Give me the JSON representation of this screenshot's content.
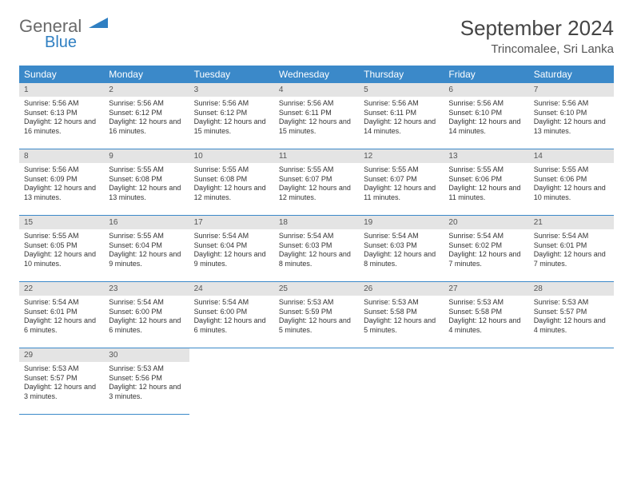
{
  "brand": {
    "part1": "General",
    "part2": "Blue"
  },
  "title": "September 2024",
  "location": "Trincomalee, Sri Lanka",
  "colors": {
    "header_bg": "#3b89c9",
    "header_text": "#ffffff",
    "daynum_bg": "#e4e4e4",
    "border": "#3b89c9",
    "logo_gray": "#6a6a6a",
    "logo_blue": "#2f7fc2"
  },
  "weekdays": [
    "Sunday",
    "Monday",
    "Tuesday",
    "Wednesday",
    "Thursday",
    "Friday",
    "Saturday"
  ],
  "days": [
    {
      "n": 1,
      "r": "5:56 AM",
      "s": "6:13 PM",
      "d": "12 hours and 16 minutes."
    },
    {
      "n": 2,
      "r": "5:56 AM",
      "s": "6:12 PM",
      "d": "12 hours and 16 minutes."
    },
    {
      "n": 3,
      "r": "5:56 AM",
      "s": "6:12 PM",
      "d": "12 hours and 15 minutes."
    },
    {
      "n": 4,
      "r": "5:56 AM",
      "s": "6:11 PM",
      "d": "12 hours and 15 minutes."
    },
    {
      "n": 5,
      "r": "5:56 AM",
      "s": "6:11 PM",
      "d": "12 hours and 14 minutes."
    },
    {
      "n": 6,
      "r": "5:56 AM",
      "s": "6:10 PM",
      "d": "12 hours and 14 minutes."
    },
    {
      "n": 7,
      "r": "5:56 AM",
      "s": "6:10 PM",
      "d": "12 hours and 13 minutes."
    },
    {
      "n": 8,
      "r": "5:56 AM",
      "s": "6:09 PM",
      "d": "12 hours and 13 minutes."
    },
    {
      "n": 9,
      "r": "5:55 AM",
      "s": "6:08 PM",
      "d": "12 hours and 13 minutes."
    },
    {
      "n": 10,
      "r": "5:55 AM",
      "s": "6:08 PM",
      "d": "12 hours and 12 minutes."
    },
    {
      "n": 11,
      "r": "5:55 AM",
      "s": "6:07 PM",
      "d": "12 hours and 12 minutes."
    },
    {
      "n": 12,
      "r": "5:55 AM",
      "s": "6:07 PM",
      "d": "12 hours and 11 minutes."
    },
    {
      "n": 13,
      "r": "5:55 AM",
      "s": "6:06 PM",
      "d": "12 hours and 11 minutes."
    },
    {
      "n": 14,
      "r": "5:55 AM",
      "s": "6:06 PM",
      "d": "12 hours and 10 minutes."
    },
    {
      "n": 15,
      "r": "5:55 AM",
      "s": "6:05 PM",
      "d": "12 hours and 10 minutes."
    },
    {
      "n": 16,
      "r": "5:55 AM",
      "s": "6:04 PM",
      "d": "12 hours and 9 minutes."
    },
    {
      "n": 17,
      "r": "5:54 AM",
      "s": "6:04 PM",
      "d": "12 hours and 9 minutes."
    },
    {
      "n": 18,
      "r": "5:54 AM",
      "s": "6:03 PM",
      "d": "12 hours and 8 minutes."
    },
    {
      "n": 19,
      "r": "5:54 AM",
      "s": "6:03 PM",
      "d": "12 hours and 8 minutes."
    },
    {
      "n": 20,
      "r": "5:54 AM",
      "s": "6:02 PM",
      "d": "12 hours and 7 minutes."
    },
    {
      "n": 21,
      "r": "5:54 AM",
      "s": "6:01 PM",
      "d": "12 hours and 7 minutes."
    },
    {
      "n": 22,
      "r": "5:54 AM",
      "s": "6:01 PM",
      "d": "12 hours and 6 minutes."
    },
    {
      "n": 23,
      "r": "5:54 AM",
      "s": "6:00 PM",
      "d": "12 hours and 6 minutes."
    },
    {
      "n": 24,
      "r": "5:54 AM",
      "s": "6:00 PM",
      "d": "12 hours and 6 minutes."
    },
    {
      "n": 25,
      "r": "5:53 AM",
      "s": "5:59 PM",
      "d": "12 hours and 5 minutes."
    },
    {
      "n": 26,
      "r": "5:53 AM",
      "s": "5:58 PM",
      "d": "12 hours and 5 minutes."
    },
    {
      "n": 27,
      "r": "5:53 AM",
      "s": "5:58 PM",
      "d": "12 hours and 4 minutes."
    },
    {
      "n": 28,
      "r": "5:53 AM",
      "s": "5:57 PM",
      "d": "12 hours and 4 minutes."
    },
    {
      "n": 29,
      "r": "5:53 AM",
      "s": "5:57 PM",
      "d": "12 hours and 3 minutes."
    },
    {
      "n": 30,
      "r": "5:53 AM",
      "s": "5:56 PM",
      "d": "12 hours and 3 minutes."
    }
  ],
  "labels": {
    "sunrise": "Sunrise:",
    "sunset": "Sunset:",
    "daylight": "Daylight:"
  }
}
